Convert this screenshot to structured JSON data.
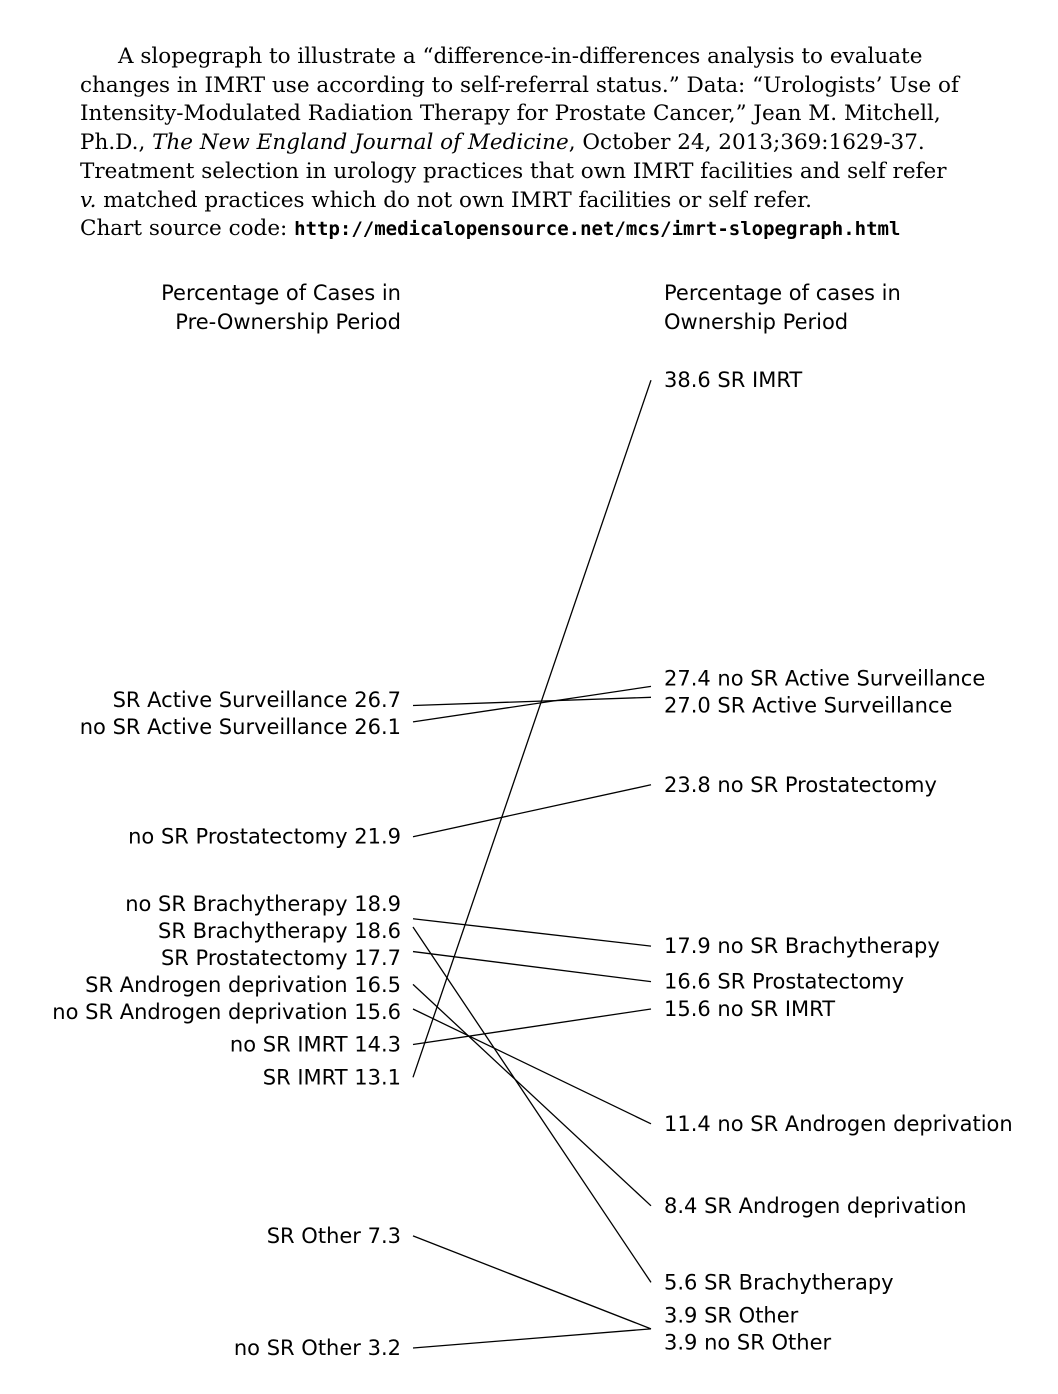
{
  "caption": {
    "l1": "A slopegraph to illustrate a “difference-in-differences analysis to evaluate",
    "l2": "changes in IMRT use according to self-referral status.” Data: “Urologists’ Use of",
    "l3": "Intensity-Modulated Radiation Therapy for Prostate Cancer,” Jean M. Mitchell,",
    "l4a": "Ph.D., ",
    "l4journal": "The New England Journal of Medicine",
    "l4b": ", October 24, 2013;369:1629-37.",
    "l5": "Treatment selection in urology practices that own IMRT facilities and self refer",
    "l6v": "v.",
    "l6": " matched practices which do not own IMRT facilities or self refer.",
    "l7a": "Chart source code: ",
    "l7url": "http://medicalopensource.net/mcs/imrt-slopegraph.html"
  },
  "chart_data": {
    "type": "slopegraph",
    "left_header": [
      "Percentage of Cases in",
      "Pre-Ownership Period"
    ],
    "right_header": [
      "Percentage of cases in",
      "Ownership Period"
    ],
    "series": [
      {
        "name": "SR IMRT",
        "pre": 13.1,
        "post": 38.6
      },
      {
        "name": "no SR Active Surveillance",
        "pre": 26.1,
        "post": 27.4
      },
      {
        "name": "SR Active Surveillance",
        "pre": 26.7,
        "post": 27.0
      },
      {
        "name": "no SR Prostatectomy",
        "pre": 21.9,
        "post": 23.8
      },
      {
        "name": "no SR Brachytherapy",
        "pre": 18.9,
        "post": 17.9
      },
      {
        "name": "SR Prostatectomy",
        "pre": 17.7,
        "post": 16.6
      },
      {
        "name": "no SR IMRT",
        "pre": 14.3,
        "post": 15.6
      },
      {
        "name": "no SR Androgen deprivation",
        "pre": 15.6,
        "post": 11.4
      },
      {
        "name": "SR Androgen deprivation",
        "pre": 16.5,
        "post": 8.4
      },
      {
        "name": "SR Brachytherapy",
        "pre": 18.6,
        "post": 5.6
      },
      {
        "name": "SR Other",
        "pre": 7.3,
        "post": 3.9
      },
      {
        "name": "no SR Other",
        "pre": 3.2,
        "post": 3.9
      }
    ]
  }
}
